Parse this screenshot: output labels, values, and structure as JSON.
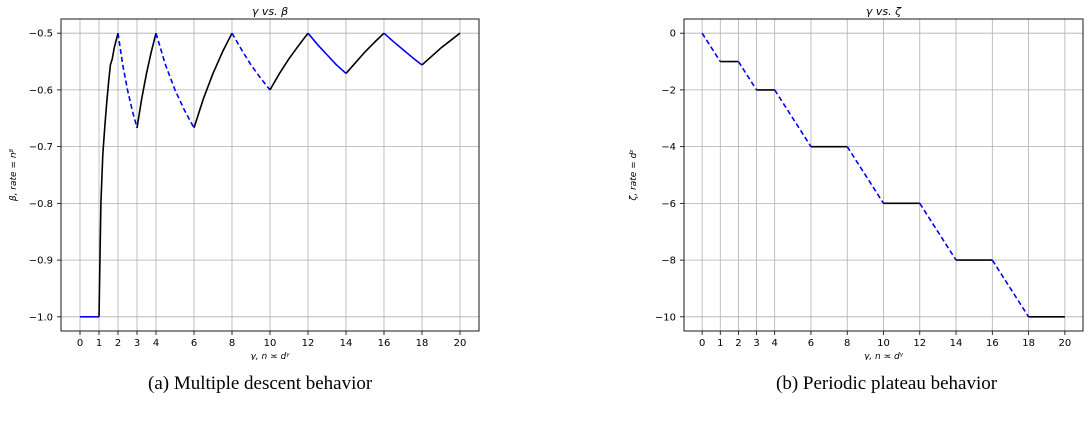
{
  "captions": {
    "a": "(a) Multiple descent behavior",
    "b": "(b) Periodic plateau behavior"
  },
  "chart_data": [
    {
      "type": "line",
      "title": "γ vs. β",
      "xlabel": "γ,  n ≍ dᵞ",
      "ylabel": "β,  rate = nᵝ",
      "xlim": [
        -1,
        21
      ],
      "ylim": [
        -1.025,
        -0.475
      ],
      "xticks": [
        0,
        1,
        2,
        3,
        4,
        6,
        8,
        10,
        12,
        14,
        16,
        18,
        20
      ],
      "yticks": [
        -1.0,
        -0.9,
        -0.8,
        -0.7,
        -0.6,
        -0.5
      ],
      "ytick_labels": [
        "−1.0",
        "−0.9",
        "−0.8",
        "−0.7",
        "−0.6",
        "−0.5"
      ],
      "grid": true,
      "series": [
        {
          "style": "solid",
          "color": "#0000ff",
          "x": [
            0,
            1
          ],
          "y": [
            -1.0,
            -1.0
          ]
        },
        {
          "style": "solid",
          "color": "#000000",
          "x": [
            1,
            1.1,
            1.2,
            1.3,
            1.4,
            1.5,
            1.6,
            1.7,
            1.8,
            1.9,
            2.0
          ],
          "y": [
            -1.0,
            -0.8,
            -0.714,
            -0.667,
            -0.625,
            -0.588,
            -0.556,
            -0.545,
            -0.526,
            -0.513,
            -0.5
          ]
        },
        {
          "style": "dashed",
          "color": "#0000ff",
          "x": [
            2,
            2.25,
            2.5,
            2.75,
            3
          ],
          "y": [
            -0.5,
            -0.556,
            -0.6,
            -0.636,
            -0.667
          ]
        },
        {
          "style": "solid",
          "color": "#000000",
          "x": [
            3,
            3.25,
            3.5,
            3.75,
            4
          ],
          "y": [
            -0.667,
            -0.615,
            -0.571,
            -0.533,
            -0.5
          ]
        },
        {
          "style": "dashed",
          "color": "#0000ff",
          "x": [
            4,
            4.5,
            5,
            5.5,
            6
          ],
          "y": [
            -0.5,
            -0.556,
            -0.6,
            -0.636,
            -0.667
          ]
        },
        {
          "style": "solid",
          "color": "#000000",
          "x": [
            6,
            6.5,
            7,
            7.5,
            8
          ],
          "y": [
            -0.667,
            -0.615,
            -0.571,
            -0.533,
            -0.5
          ]
        },
        {
          "style": "dashed",
          "color": "#0000ff",
          "x": [
            8,
            8.5,
            9,
            9.5,
            10
          ],
          "y": [
            -0.5,
            -0.529,
            -0.556,
            -0.579,
            -0.6
          ]
        },
        {
          "style": "solid",
          "color": "#000000",
          "x": [
            10,
            10.5,
            11,
            11.5,
            12
          ],
          "y": [
            -0.6,
            -0.571,
            -0.545,
            -0.522,
            -0.5
          ]
        },
        {
          "style": "solid",
          "color": "#0000ff",
          "x": [
            12,
            12.5,
            13,
            13.5,
            14
          ],
          "y": [
            -0.5,
            -0.52,
            -0.538,
            -0.556,
            -0.571
          ]
        },
        {
          "style": "solid",
          "color": "#000000",
          "x": [
            14,
            14.5,
            15,
            15.5,
            16
          ],
          "y": [
            -0.571,
            -0.552,
            -0.533,
            -0.516,
            -0.5
          ]
        },
        {
          "style": "solid",
          "color": "#0000ff",
          "x": [
            16,
            16.5,
            17,
            17.5,
            18
          ],
          "y": [
            -0.5,
            -0.515,
            -0.529,
            -0.543,
            -0.556
          ]
        },
        {
          "style": "solid",
          "color": "#000000",
          "x": [
            18,
            18.5,
            19,
            19.5,
            20
          ],
          "y": [
            -0.556,
            -0.541,
            -0.526,
            -0.513,
            -0.5
          ]
        }
      ]
    },
    {
      "type": "line",
      "title": "γ vs. ζ",
      "xlabel": "γ,  n ≍ dᵞ",
      "ylabel": "ζ,  rate = dᶻ",
      "xlim": [
        -1,
        21
      ],
      "ylim": [
        -10.5,
        0.5
      ],
      "xticks": [
        0,
        1,
        2,
        3,
        4,
        6,
        8,
        10,
        12,
        14,
        16,
        18,
        20
      ],
      "yticks": [
        -10,
        -8,
        -6,
        -4,
        -2,
        0
      ],
      "ytick_labels": [
        "−10",
        "−8",
        "−6",
        "−4",
        "−2",
        "0"
      ],
      "grid": true,
      "series": [
        {
          "style": "dashed",
          "color": "#0000ff",
          "x": [
            0,
            1
          ],
          "y": [
            0,
            -1
          ]
        },
        {
          "style": "solid",
          "color": "#000000",
          "x": [
            1,
            2
          ],
          "y": [
            -1,
            -1
          ]
        },
        {
          "style": "dashed",
          "color": "#0000ff",
          "x": [
            2,
            3
          ],
          "y": [
            -1,
            -2
          ]
        },
        {
          "style": "solid",
          "color": "#000000",
          "x": [
            3,
            4
          ],
          "y": [
            -2,
            -2
          ]
        },
        {
          "style": "dashed",
          "color": "#0000ff",
          "x": [
            4,
            6
          ],
          "y": [
            -2,
            -4
          ]
        },
        {
          "style": "solid",
          "color": "#000000",
          "x": [
            6,
            8
          ],
          "y": [
            -4,
            -4
          ]
        },
        {
          "style": "dashed",
          "color": "#0000ff",
          "x": [
            8,
            10
          ],
          "y": [
            -4,
            -6
          ]
        },
        {
          "style": "solid",
          "color": "#000000",
          "x": [
            10,
            12
          ],
          "y": [
            -6,
            -6
          ]
        },
        {
          "style": "dashed",
          "color": "#0000ff",
          "x": [
            12,
            14
          ],
          "y": [
            -6,
            -8
          ]
        },
        {
          "style": "solid",
          "color": "#000000",
          "x": [
            14,
            16
          ],
          "y": [
            -8,
            -8
          ]
        },
        {
          "style": "dashed",
          "color": "#0000ff",
          "x": [
            16,
            18
          ],
          "y": [
            -8,
            -10
          ]
        },
        {
          "style": "solid",
          "color": "#000000",
          "x": [
            18,
            20
          ],
          "y": [
            -10,
            -10
          ]
        }
      ]
    }
  ]
}
